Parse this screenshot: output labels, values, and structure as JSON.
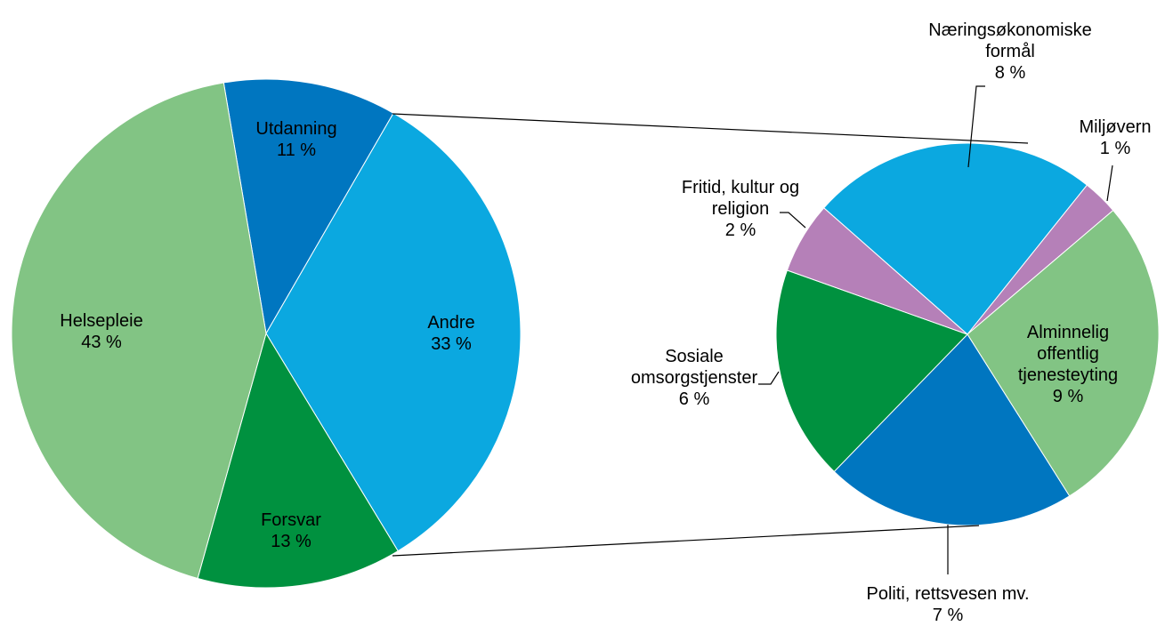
{
  "chart_data": [
    {
      "type": "pie",
      "categories": [
        "Utdanning",
        "Andre",
        "Forsvar",
        "Helsepleie"
      ],
      "values": [
        11,
        33,
        13,
        43
      ],
      "value_labels": [
        "11 %",
        "33 %",
        "13 %",
        "43 %"
      ],
      "colors": [
        "#0076c0",
        "#0ba8e0",
        "#00913f",
        "#82c484"
      ]
    },
    {
      "type": "pie",
      "categories": [
        "Næringsøkonomiske formål",
        "Miljøvern",
        "Alminnelig offentlig tjenesteyting",
        "Politi, rettsvesen mv.",
        "Sosiale omsorgstjenster",
        "Fritid, kultur og religion"
      ],
      "values": [
        8,
        1,
        9,
        7,
        6,
        2
      ],
      "value_labels": [
        "8 %",
        "1 %",
        "9 %",
        "7 %",
        "6 %",
        "2 %"
      ],
      "colors": [
        "#0ba8e0",
        "#b580b8",
        "#82c484",
        "#0076c0",
        "#00913f",
        "#b580b8"
      ]
    }
  ]
}
